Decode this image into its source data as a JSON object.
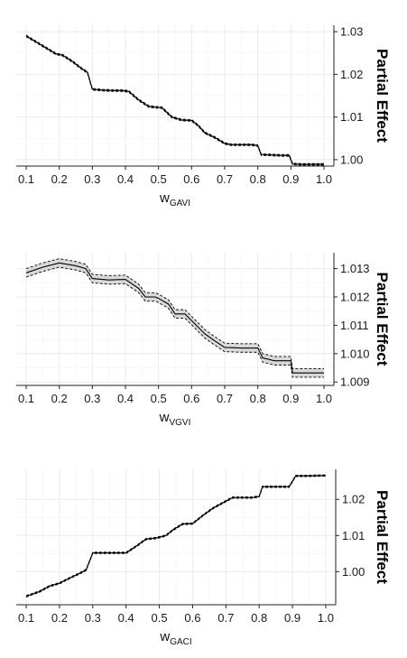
{
  "chart_data": [
    {
      "type": "line",
      "title": "",
      "xlabel": "w",
      "xlabel_subscript": "GAVI",
      "ylabel": "Partial Effect",
      "xlim": [
        0.07,
        1.03
      ],
      "ylim": [
        0.9985,
        1.0315
      ],
      "xticks": [
        0.1,
        0.2,
        0.3,
        0.4,
        0.5,
        0.6,
        0.7,
        0.8,
        0.9,
        1.0
      ],
      "xtick_labels": [
        "0.1",
        "0.2",
        "0.3",
        "0.4",
        "0.5",
        "0.6",
        "0.7",
        "0.8",
        "0.9",
        "1.0"
      ],
      "yticks": [
        1.0,
        1.01,
        1.02,
        1.03
      ],
      "ytick_labels": [
        "1.00",
        "1.01",
        "1.02",
        "1.03"
      ],
      "grid": true,
      "y_axis_position": "right",
      "series": [
        {
          "x": [
            0.1,
            0.13,
            0.16,
            0.19,
            0.21,
            0.24,
            0.27,
            0.285,
            0.3,
            0.33,
            0.36,
            0.39,
            0.41,
            0.44,
            0.47,
            0.49,
            0.51,
            0.54,
            0.57,
            0.6,
            0.62,
            0.64,
            0.67,
            0.7,
            0.72,
            0.75,
            0.78,
            0.8,
            0.81,
            0.84,
            0.87,
            0.895,
            0.905,
            0.93,
            0.96,
            1.0
          ],
          "y": [
            1.029,
            1.0276,
            1.0262,
            1.0248,
            1.0245,
            1.023,
            1.0212,
            1.0205,
            1.0165,
            1.0163,
            1.0162,
            1.0162,
            1.016,
            1.014,
            1.0125,
            1.0123,
            1.0122,
            1.01,
            1.0093,
            1.0092,
            1.008,
            1.0063,
            1.0052,
            1.0038,
            1.0035,
            1.0035,
            1.0035,
            1.0033,
            1.0012,
            1.0011,
            1.001,
            1.001,
            0.999,
            0.9989,
            0.9989,
            0.9989
          ],
          "band": 0.0002
        }
      ]
    },
    {
      "type": "line",
      "title": "",
      "xlabel": "w",
      "xlabel_subscript": "VGVI",
      "ylabel": "Partial Effect",
      "xlim": [
        0.07,
        1.03
      ],
      "ylim": [
        1.00888,
        1.01356
      ],
      "xticks": [
        0.1,
        0.2,
        0.3,
        0.4,
        0.5,
        0.6,
        0.7,
        0.8,
        0.9,
        1.0
      ],
      "xtick_labels": [
        "0.1",
        "0.2",
        "0.3",
        "0.4",
        "0.5",
        "0.6",
        "0.7",
        "0.8",
        "0.9",
        "1.0"
      ],
      "yticks": [
        1.009,
        1.01,
        1.011,
        1.012,
        1.013
      ],
      "ytick_labels": [
        "1.009",
        "1.010",
        "1.011",
        "1.012",
        "1.013"
      ],
      "grid": true,
      "y_axis_position": "right",
      "series": [
        {
          "x": [
            0.1,
            0.15,
            0.2,
            0.25,
            0.28,
            0.3,
            0.35,
            0.4,
            0.44,
            0.46,
            0.49,
            0.5,
            0.53,
            0.55,
            0.58,
            0.61,
            0.64,
            0.67,
            0.7,
            0.75,
            0.8,
            0.815,
            0.85,
            0.9,
            0.905,
            0.95,
            1.0
          ],
          "y": [
            1.01285,
            1.01305,
            1.0132,
            1.0131,
            1.013,
            1.01265,
            1.0126,
            1.01262,
            1.0123,
            1.012,
            1.012,
            1.01195,
            1.01175,
            1.0114,
            1.0114,
            1.01105,
            1.0107,
            1.01045,
            1.01022,
            1.0102,
            1.0102,
            1.00985,
            1.00975,
            1.00975,
            1.00932,
            1.00932,
            1.00932
          ],
          "band": 0.00015
        }
      ]
    },
    {
      "type": "line",
      "title": "",
      "xlabel": "w",
      "xlabel_subscript": "GACI",
      "ylabel": "Partial Effect",
      "xlim": [
        0.07,
        1.03
      ],
      "ylim": [
        0.99085,
        1.0283
      ],
      "xticks": [
        0.1,
        0.2,
        0.3,
        0.4,
        0.5,
        0.6,
        0.7,
        0.8,
        0.9,
        1.0
      ],
      "xtick_labels": [
        "0.1",
        "0.2",
        "0.3",
        "0.4",
        "0.5",
        "0.6",
        "0.7",
        "0.8",
        "0.9",
        "1.0"
      ],
      "yticks": [
        1.0,
        1.01,
        1.02
      ],
      "ytick_labels": [
        "1.00",
        "1.01",
        "1.02"
      ],
      "grid": true,
      "y_axis_position": "right",
      "series": [
        {
          "x": [
            0.1,
            0.14,
            0.17,
            0.2,
            0.23,
            0.26,
            0.28,
            0.3,
            0.35,
            0.4,
            0.43,
            0.46,
            0.49,
            0.52,
            0.54,
            0.57,
            0.6,
            0.63,
            0.66,
            0.69,
            0.72,
            0.75,
            0.78,
            0.8,
            0.81,
            0.85,
            0.89,
            0.91,
            0.95,
            1.0
          ],
          "y": [
            0.9932,
            0.9945,
            0.996,
            0.9968,
            0.9982,
            0.9995,
            1.0005,
            1.0052,
            1.0052,
            1.0052,
            1.007,
            1.009,
            1.0093,
            1.01,
            1.0115,
            1.0132,
            1.0133,
            1.0155,
            1.0175,
            1.019,
            1.0205,
            1.0205,
            1.0205,
            1.0208,
            1.0235,
            1.0235,
            1.0235,
            1.0265,
            1.0265,
            1.0266
          ],
          "band": 0.0002
        }
      ]
    }
  ]
}
